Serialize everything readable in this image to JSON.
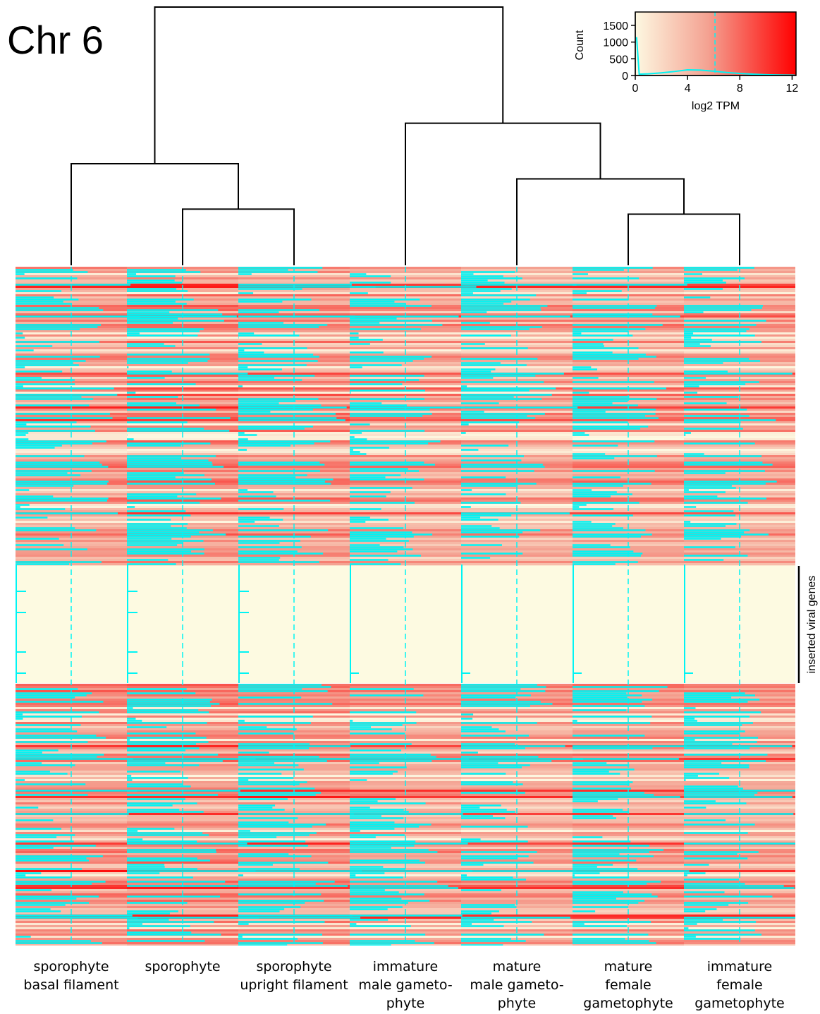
{
  "chart_data": {
    "type": "heatmap",
    "title": "Chr 6",
    "columns": [
      {
        "label_lines": [
          "sporophyte",
          "basal filament"
        ]
      },
      {
        "label_lines": [
          "sporophyte"
        ]
      },
      {
        "label_lines": [
          "sporophyte",
          "upright filament"
        ]
      },
      {
        "label_lines": [
          "immature",
          "male gameto-",
          "phyte"
        ]
      },
      {
        "label_lines": [
          "mature",
          "male gameto-",
          "phyte"
        ]
      },
      {
        "label_lines": [
          "mature",
          "female",
          "gametophyte"
        ]
      },
      {
        "label_lines": [
          "immature",
          "female",
          "gametophyte"
        ]
      }
    ],
    "dendrogram": {
      "merges": [
        {
          "left": 5,
          "right": 6,
          "height": 0.09
        },
        {
          "left": 1,
          "right": 2,
          "height": 0.1
        },
        {
          "left": 4,
          "right": "m1",
          "height": 0.16
        },
        {
          "left": 0,
          "right": "m2",
          "height": 0.19
        },
        {
          "left": 3,
          "right": "m3",
          "height": 0.27
        },
        {
          "left": "m4",
          "right": "m5",
          "height": 0.5
        }
      ]
    },
    "annotation": {
      "label": "inserted viral genes"
    },
    "color_key": {
      "title": "",
      "xlabel": "log2 TPM",
      "ylabel": "Count",
      "x_ticks": [
        "0",
        "4",
        "8",
        "12"
      ],
      "y_ticks": [
        "0",
        "500",
        "1000",
        "1500"
      ],
      "xlim": [
        0,
        12.3
      ],
      "ylim": [
        0,
        1900
      ],
      "mean_line_x": 6.1,
      "colors": {
        "low": "#fdf8e1",
        "mid": "#f4a292",
        "high": "#ff0000"
      },
      "histogram": {
        "x": [
          0.1,
          0.3,
          1,
          2,
          3,
          4,
          5,
          6,
          7,
          8,
          9,
          10,
          11,
          12.2
        ],
        "y": [
          1150,
          40,
          50,
          80,
          120,
          170,
          160,
          130,
          90,
          60,
          40,
          25,
          15,
          10
        ]
      }
    },
    "row_blocks": [
      {
        "section": "genes-upper",
        "viral": false
      },
      {
        "section": "inserted-viral-genes",
        "viral": true
      },
      {
        "section": "genes-lower",
        "viral": false
      }
    ],
    "trace_color": "#00f4f4",
    "grid": false
  }
}
